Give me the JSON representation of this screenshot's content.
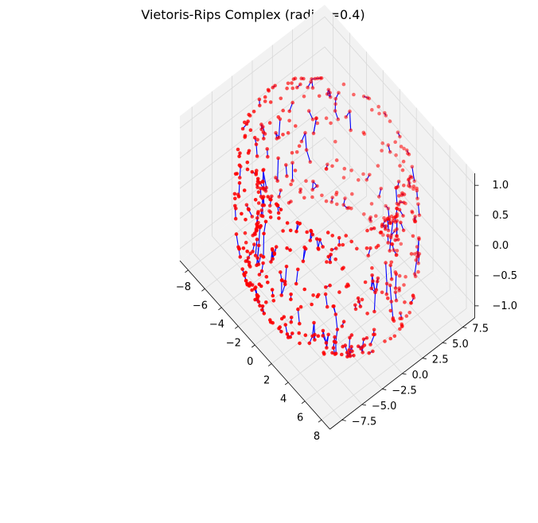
{
  "chart_data": {
    "type": "scatter",
    "subtype": "3d-scatter-with-edges",
    "title": "Vietoris-Rips Complex (radius=0.4)",
    "xlabel": "",
    "ylabel": "",
    "zlabel": "",
    "xlim": [
      -9,
      9
    ],
    "ylim": [
      -9,
      9
    ],
    "zlim": [
      -1.2,
      1.2
    ],
    "x_ticks": [
      -8,
      -6,
      -4,
      -2,
      0,
      2,
      4,
      6,
      8
    ],
    "x_tick_labels": [
      "−8",
      "−6",
      "−4",
      "−2",
      "0",
      "2",
      "4",
      "6",
      "8"
    ],
    "y_ticks": [
      -7.5,
      -5.0,
      -2.5,
      0.0,
      2.5,
      5.0,
      7.5
    ],
    "y_tick_labels": [
      "−7.5",
      "−5.0",
      "−2.5",
      "0.0",
      "2.5",
      "5.0",
      "7.5"
    ],
    "z_ticks": [
      -1.0,
      -0.5,
      0.0,
      0.5,
      1.0
    ],
    "z_tick_labels": [
      "−1.0",
      "−0.5",
      "0.0",
      "0.5",
      "1.0"
    ],
    "grid": true,
    "shape": "torus",
    "torus_major_radius": 7.0,
    "torus_minor_radius": 1.0,
    "point_color": "#ff0000",
    "edge_color": "#0000ff",
    "pane_color": "#f2f2f2",
    "grid_color": "#d9d9d9"
  }
}
